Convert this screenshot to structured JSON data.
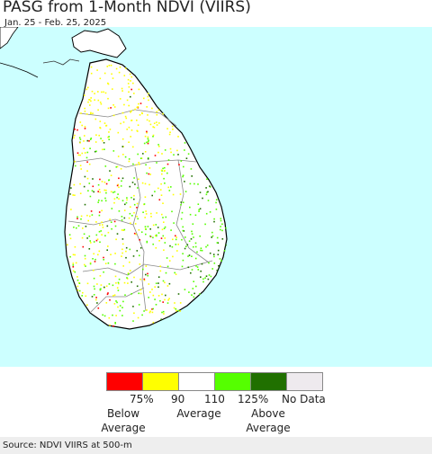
{
  "title": "PASG from 1-Month NDVI (VIIRS)",
  "subtitle": "Jan. 25 - Feb. 25, 2025",
  "colors": {
    "ocean": "#ccffff",
    "land": "#ffffff",
    "border": "#888888",
    "coast": "#000000",
    "below_75": "#ff0000",
    "p75_90": "#ffff00",
    "p90_110": "#ffffff",
    "p110_125": "#55ff00",
    "above_125": "#207000",
    "no_data": "#eeeaee"
  },
  "legend": {
    "swatches": [
      {
        "name": "below-75",
        "color": "#ff0000"
      },
      {
        "name": "75-90",
        "color": "#ffff00"
      },
      {
        "name": "90-110",
        "color": "#ffffff"
      },
      {
        "name": "110-125",
        "color": "#55ff00"
      },
      {
        "name": "above-125",
        "color": "#207000"
      },
      {
        "name": "no-data",
        "color": "#eeeaee"
      }
    ],
    "ticks": [
      "75%",
      "90",
      "110",
      "125%",
      "No Data"
    ],
    "below_label": "Below\nAverage",
    "average_label": "Average",
    "above_label": "Above\nAverage"
  },
  "footer": "Source: NDVI VIIRS at 500-m"
}
